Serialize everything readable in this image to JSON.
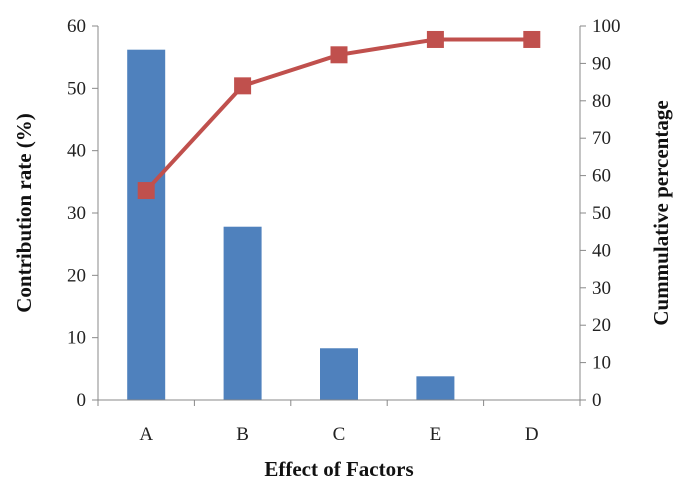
{
  "chart_data": {
    "type": "bar",
    "categories": [
      "A",
      "B",
      "C",
      "E",
      "D"
    ],
    "series": [
      {
        "name": "Contribution rate (%)",
        "type": "bar",
        "axis": "left",
        "color": "#4F81BD",
        "values": [
          56.2,
          27.8,
          8.3,
          3.8,
          0
        ]
      },
      {
        "name": "Cummulative percentage",
        "type": "line",
        "axis": "right",
        "color": "#C0504D",
        "marker": "square",
        "values": [
          56,
          84,
          92.3,
          96.4,
          96.4
        ]
      }
    ],
    "xlabel": "Effect of Factors",
    "ylabel": "Contribution rate (%)",
    "y2label": "Cummulative percentage",
    "ylim": [
      0,
      60
    ],
    "y2lim": [
      0,
      100
    ],
    "yticks": [
      "0",
      "10",
      "20",
      "30",
      "40",
      "50",
      "60"
    ],
    "y2ticks": [
      "0",
      "10",
      "20",
      "30",
      "40",
      "50",
      "60",
      "70",
      "80",
      "90",
      "100"
    ],
    "grid": false,
    "legend": "none"
  }
}
